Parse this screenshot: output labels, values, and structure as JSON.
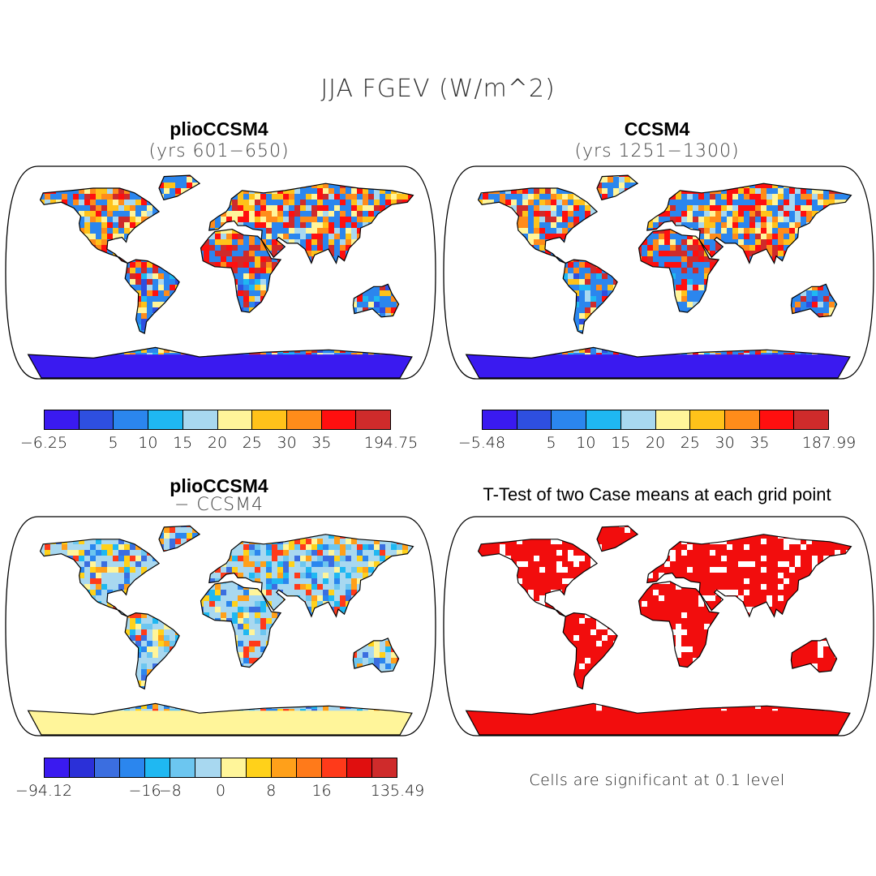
{
  "figure": {
    "title": "JJA FGEV (W/m^2)"
  },
  "panels": [
    {
      "title": "plioCCSM4",
      "subtitle": "(yrs 601−650)",
      "colorbar": {
        "colors": [
          "#3a1af0",
          "#2e4fe0",
          "#2b86ee",
          "#1fb8f2",
          "#a8d8f0",
          "#fff59a",
          "#ffc21a",
          "#ff8c1a",
          "#ff0f0f",
          "#cf2b2b"
        ],
        "tick_labels": [
          "−6.25",
          "5",
          "10",
          "15",
          "20",
          "25",
          "30",
          "35",
          "194.75"
        ]
      }
    },
    {
      "title": "CCSM4",
      "subtitle": "(yrs 1251−1300)",
      "colorbar": {
        "colors": [
          "#3a1af0",
          "#2e4fe0",
          "#2b86ee",
          "#1fb8f2",
          "#a8d8f0",
          "#fff59a",
          "#ffc21a",
          "#ff8c1a",
          "#ff0f0f",
          "#cf2b2b"
        ],
        "tick_labels": [
          "−5.48",
          "5",
          "10",
          "15",
          "20",
          "25",
          "30",
          "35",
          "187.99"
        ]
      }
    },
    {
      "title": "plioCCSM4",
      "subtitle": "− CCSM4",
      "colorbar": {
        "colors": [
          "#3a1af0",
          "#2b30d8",
          "#3b6ee0",
          "#2b86ee",
          "#1fb8f2",
          "#6cc6f0",
          "#a8d8f0",
          "#fff59a",
          "#ffd11a",
          "#ffa01a",
          "#ff7a1a",
          "#ff3a1a",
          "#e00f0f",
          "#cf2b2b"
        ],
        "tick_labels": [
          "−94.12",
          "−16",
          "−8",
          "0",
          "8",
          "16",
          "135.49"
        ]
      }
    },
    {
      "title": "T-Test of two Case means at each grid point",
      "note": "Cells are significant at 0.1 level"
    }
  ],
  "colors": {
    "significant": "#f20d0d",
    "ocean": "#ffffff",
    "antarctica_abs": "#3a1af0",
    "antarctica_diff": "#fff59a"
  }
}
